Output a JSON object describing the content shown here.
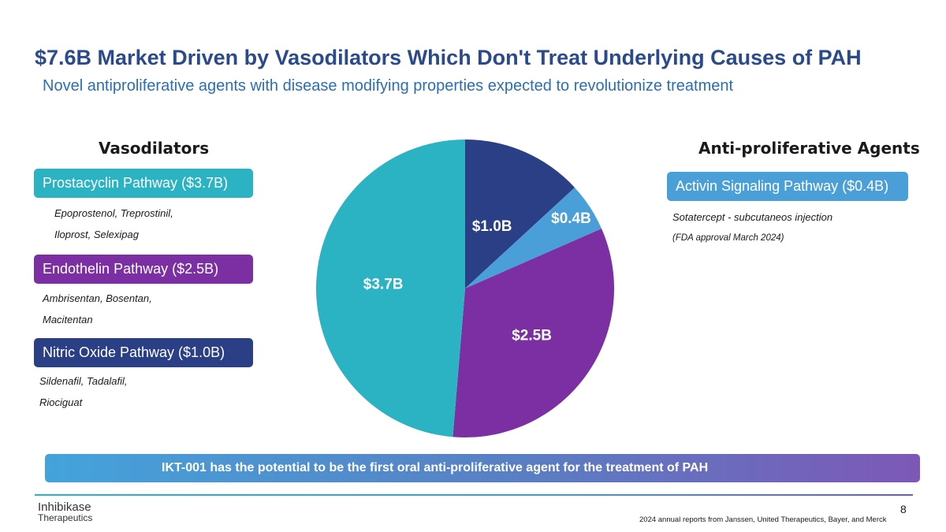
{
  "header": {
    "title": "$7.6B Market Driven by Vasodilators Which Don't Treat Underlying Causes of PAH",
    "subtitle": "Novel antiproliferative agents with disease modifying properties expected to revolutionize  treatment"
  },
  "left": {
    "heading": "Vasodilators",
    "pathways": [
      {
        "label": "Prostacyclin Pathway ($3.7B)",
        "color": "#2bb3c4",
        "drugs_line1": "Epoprostenol, Treprostinil,",
        "drugs_line2": "Iloprost, Selexipag"
      },
      {
        "label": "Endothelin Pathway ($2.5B)",
        "color": "#7b2fa3",
        "drugs_line1": "Ambrisentan, Bosentan,",
        "drugs_line2": "Macitentan"
      },
      {
        "label": "Nitric Oxide Pathway ($1.0B)",
        "color": "#2b3f86",
        "drugs_line1": "Sildenafil, Tadalafil,",
        "drugs_line2": "Riociguat"
      }
    ]
  },
  "right": {
    "heading": "Anti-proliferative Agents",
    "pathways": [
      {
        "label": "Activin Signaling Pathway ($0.4B)",
        "color": "#4b9fd9",
        "drugs_line1": "Sotatercept -  subcutaneos injection",
        "drugs_line2": "(FDA approval March 2024)"
      }
    ]
  },
  "chart_data": {
    "type": "pie",
    "title": "",
    "start": "top, clockwise",
    "slices": [
      {
        "name": "Nitric Oxide Pathway",
        "value": 1.0,
        "label": "$1.0B",
        "color": "#2b3f86"
      },
      {
        "name": "Activin Signaling Pathway",
        "value": 0.4,
        "label": "$0.4B",
        "color": "#4b9fd9"
      },
      {
        "name": "Endothelin Pathway",
        "value": 2.5,
        "label": "$2.5B",
        "color": "#7b2fa3"
      },
      {
        "name": "Prostacyclin Pathway",
        "value": 3.7,
        "label": "$3.7B",
        "color": "#2bb3c4"
      }
    ]
  },
  "banner": {
    "text": "IKT-001 has the potential to be the first oral anti-proliferative agent for the treatment of PAH"
  },
  "footer": {
    "logo_line1": "Inhibikase",
    "logo_line2": "Therapeutics",
    "page_number": "8",
    "source": "2024 annual reports from Janssen, United Therapeutics, Bayer, and Merck"
  }
}
